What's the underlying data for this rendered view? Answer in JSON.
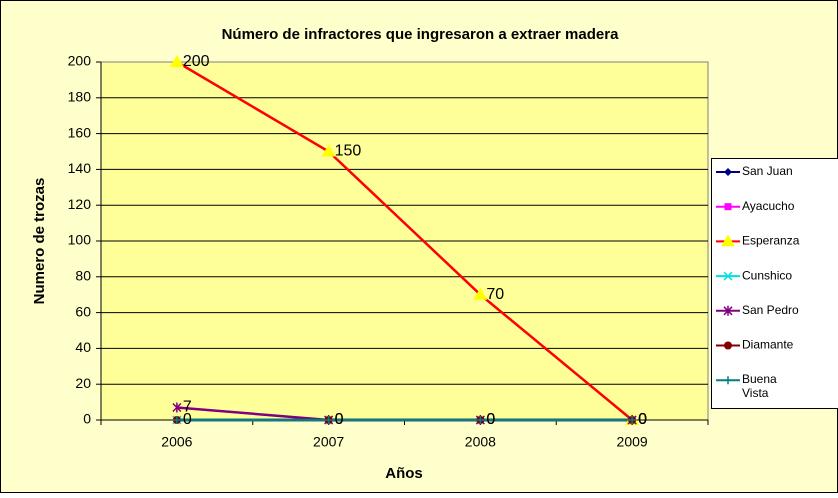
{
  "chart_data": {
    "type": "line",
    "title": "Número de infractores que ingresaron a extraer madera",
    "x_label": "Años",
    "y_label": "Numero de trozas",
    "categories": [
      "2006",
      "2007",
      "2008",
      "2009"
    ],
    "ylim": [
      0,
      200
    ],
    "yticks": [
      0,
      20,
      40,
      60,
      80,
      100,
      120,
      140,
      160,
      180,
      200
    ],
    "grid": true,
    "legend": "right",
    "series": [
      {
        "name": "San Juan",
        "color": "#000080",
        "marker": "diamond",
        "data_labels": true,
        "values": [
          0,
          0,
          0,
          0
        ]
      },
      {
        "name": "Ayacucho",
        "color": "#ff00ff",
        "marker": "square",
        "values": [
          0,
          0,
          0,
          0
        ]
      },
      {
        "name": "Esperanza",
        "color": "#ff0000",
        "marker_color": "#ffff00",
        "marker": "triangle",
        "data_labels": true,
        "values": [
          200,
          150,
          70,
          0
        ]
      },
      {
        "name": "Cunshico",
        "color": "#00e0e0",
        "marker": "x",
        "values": [
          0,
          0,
          0,
          0
        ]
      },
      {
        "name": "San Pedro",
        "color": "#800080",
        "marker": "star",
        "data_labels": true,
        "values": [
          7,
          0,
          0,
          0
        ]
      },
      {
        "name": "Diamante",
        "color": "#800000",
        "marker": "circle",
        "values": [
          0,
          0,
          0,
          0
        ]
      },
      {
        "name": "Buena Vista",
        "color": "#008080",
        "marker": "plus",
        "values": [
          0,
          0,
          0,
          0
        ]
      }
    ]
  }
}
